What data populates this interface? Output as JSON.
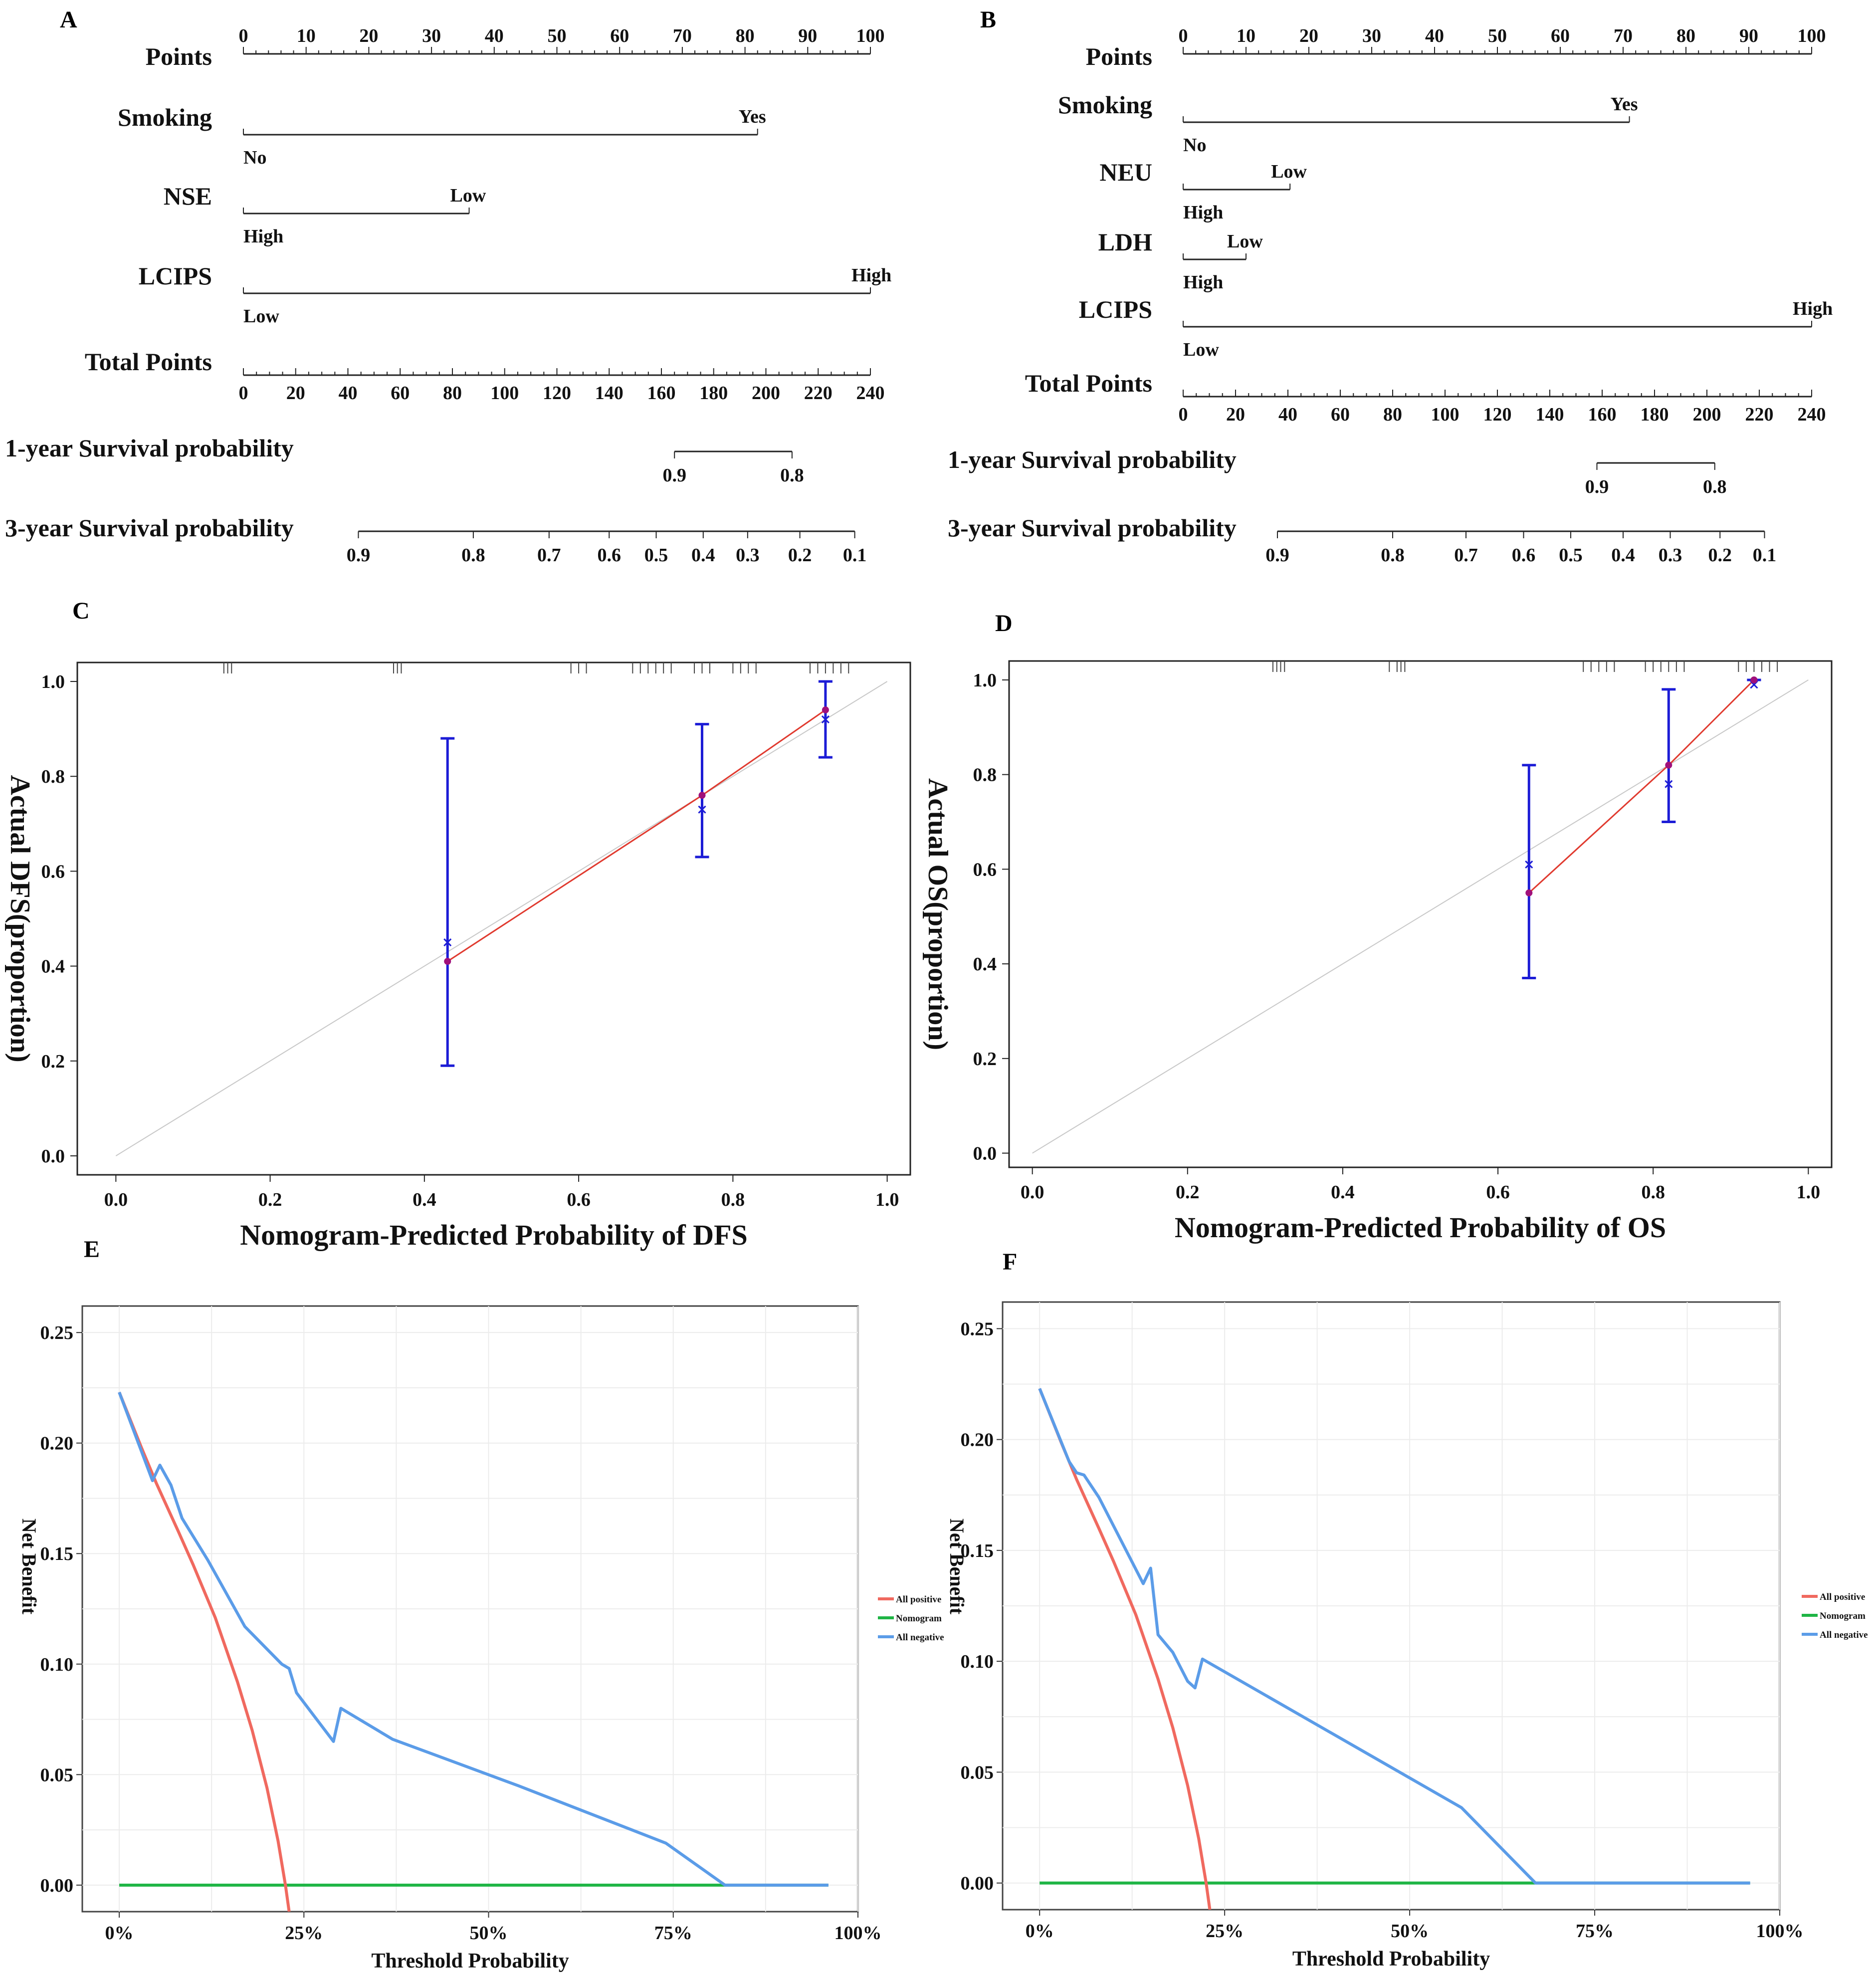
{
  "chart_data": [
    {
      "panel": "A",
      "type": "nomogram",
      "points_label": "Points",
      "points_ticks": [
        "0",
        "10",
        "20",
        "30",
        "40",
        "50",
        "60",
        "70",
        "80",
        "90",
        "100"
      ],
      "variables": [
        {
          "name": "Smoking",
          "low_label": "No",
          "high_label": "Yes",
          "max_points": 82
        },
        {
          "name": "NSE",
          "low_label": "High",
          "high_label": "Low",
          "max_points": 36
        },
        {
          "name": "LCIPS",
          "low_label": "Low",
          "high_label": "High",
          "max_points": 100
        }
      ],
      "total_label": "Total Points",
      "total_ticks": [
        "0",
        "20",
        "40",
        "60",
        "80",
        "100",
        "120",
        "140",
        "160",
        "180",
        "200",
        "220",
        "240"
      ],
      "total_max": 240,
      "survival": [
        {
          "label": "1-year Survival probability",
          "ticks": [
            {
              "t": "0.9",
              "pts": 165
            },
            {
              "t": "0.8",
              "pts": 210
            }
          ]
        },
        {
          "label": "3-year Survival probability",
          "ticks": [
            {
              "t": "0.9",
              "pts": 44
            },
            {
              "t": "0.8",
              "pts": 88
            },
            {
              "t": "0.7",
              "pts": 117
            },
            {
              "t": "0.6",
              "pts": 140
            },
            {
              "t": "0.5",
              "pts": 158
            },
            {
              "t": "0.4",
              "pts": 176
            },
            {
              "t": "0.3",
              "pts": 193
            },
            {
              "t": "0.2",
              "pts": 213
            },
            {
              "t": "0.1",
              "pts": 234
            }
          ]
        }
      ]
    },
    {
      "panel": "B",
      "type": "nomogram",
      "points_label": "Points",
      "points_ticks": [
        "0",
        "10",
        "20",
        "30",
        "40",
        "50",
        "60",
        "70",
        "80",
        "90",
        "100"
      ],
      "variables": [
        {
          "name": "Smoking",
          "low_label": "No",
          "high_label": "Yes",
          "max_points": 71
        },
        {
          "name": "NEU",
          "low_label": "High",
          "high_label": "Low",
          "max_points": 17
        },
        {
          "name": "LDH",
          "low_label": "High",
          "high_label": "Low",
          "max_points": 10
        },
        {
          "name": "LCIPS",
          "low_label": "Low",
          "high_label": "High",
          "max_points": 100
        }
      ],
      "total_label": "Total Points",
      "total_ticks": [
        "0",
        "20",
        "40",
        "60",
        "80",
        "100",
        "120",
        "140",
        "160",
        "180",
        "200",
        "220",
        "240"
      ],
      "total_max": 240,
      "survival": [
        {
          "label": "1-year Survival probability",
          "ticks": [
            {
              "t": "0.9",
              "pts": 158
            },
            {
              "t": "0.8",
              "pts": 203
            }
          ]
        },
        {
          "label": "3-year Survival probability",
          "ticks": [
            {
              "t": "0.9",
              "pts": 36
            },
            {
              "t": "0.8",
              "pts": 80
            },
            {
              "t": "0.7",
              "pts": 108
            },
            {
              "t": "0.6",
              "pts": 130
            },
            {
              "t": "0.5",
              "pts": 148
            },
            {
              "t": "0.4",
              "pts": 168
            },
            {
              "t": "0.3",
              "pts": 186
            },
            {
              "t": "0.2",
              "pts": 205
            },
            {
              "t": "0.1",
              "pts": 222
            }
          ]
        }
      ]
    },
    {
      "panel": "C",
      "type": "calibration",
      "xlabel": "Nomogram-Predicted Probability of DFS",
      "ylabel": "Actual DFS(proportion)",
      "xlim": [
        -0.05,
        1.03
      ],
      "ylim": [
        -0.04,
        1.04
      ],
      "xticks": [
        "0.0",
        "0.2",
        "0.4",
        "0.6",
        "0.8",
        "1.0"
      ],
      "yticks": [
        "0.0",
        "0.2",
        "0.4",
        "0.6",
        "0.8",
        "1.0"
      ],
      "points": [
        {
          "x": 0.43,
          "observed": 0.41,
          "corrected": 0.45,
          "lower": 0.19,
          "upper": 0.88
        },
        {
          "x": 0.76,
          "observed": 0.76,
          "corrected": 0.73,
          "lower": 0.63,
          "upper": 0.91
        },
        {
          "x": 0.92,
          "observed": 0.94,
          "corrected": 0.92,
          "lower": 0.84,
          "upper": 1.0
        }
      ],
      "rug": [
        0.14,
        0.145,
        0.15,
        0.36,
        0.365,
        0.37,
        0.59,
        0.6,
        0.61,
        0.67,
        0.68,
        0.69,
        0.7,
        0.71,
        0.72,
        0.75,
        0.76,
        0.77,
        0.8,
        0.81,
        0.82,
        0.83,
        0.9,
        0.91,
        0.92,
        0.93,
        0.94,
        0.95
      ]
    },
    {
      "panel": "D",
      "type": "calibration",
      "xlabel": "Nomogram-Predicted Probability of OS",
      "ylabel": "Actual OS(proportion)",
      "xlim": [
        -0.03,
        1.03
      ],
      "ylim": [
        -0.03,
        1.04
      ],
      "xticks": [
        "0.0",
        "0.2",
        "0.4",
        "0.6",
        "0.8",
        "1.0"
      ],
      "yticks": [
        "0.0",
        "0.2",
        "0.4",
        "0.6",
        "0.8",
        "1.0"
      ],
      "points": [
        {
          "x": 0.64,
          "observed": 0.55,
          "corrected": 0.61,
          "lower": 0.37,
          "upper": 0.82
        },
        {
          "x": 0.82,
          "observed": 0.82,
          "corrected": 0.78,
          "lower": 0.7,
          "upper": 0.98
        },
        {
          "x": 0.93,
          "observed": 1.0,
          "corrected": 0.99,
          "lower": 1.0,
          "upper": 1.0
        }
      ],
      "rug": [
        0.31,
        0.315,
        0.32,
        0.325,
        0.46,
        0.47,
        0.475,
        0.48,
        0.71,
        0.72,
        0.73,
        0.74,
        0.75,
        0.79,
        0.8,
        0.81,
        0.82,
        0.83,
        0.84,
        0.91,
        0.92,
        0.93,
        0.94,
        0.95,
        0.96
      ]
    },
    {
      "panel": "E",
      "type": "line",
      "subtype": "decision-curve",
      "xlabel": "Threshold Probability",
      "ylabel": "Net Benefit",
      "xlim": [
        -0.05,
        1.0
      ],
      "ylim": [
        -0.012,
        0.262
      ],
      "xticks": [
        "0%",
        "25%",
        "50%",
        "75%",
        "100%"
      ],
      "yticks": [
        "0.00",
        "0.05",
        "0.10",
        "0.15",
        "0.20",
        "0.25"
      ],
      "series": [
        {
          "name": "All positive",
          "color": "#f0695f",
          "points": [
            [
              0,
              0.223
            ],
            [
              0.03,
              0.198
            ],
            [
              0.05,
              0.182
            ],
            [
              0.08,
              0.16
            ],
            [
              0.1,
              0.145
            ],
            [
              0.13,
              0.121
            ],
            [
              0.16,
              0.092
            ],
            [
              0.18,
              0.07
            ],
            [
              0.2,
              0.044
            ],
            [
              0.215,
              0.02
            ],
            [
              0.225,
              0.0
            ],
            [
              0.23,
              -0.012
            ]
          ]
        },
        {
          "name": "Nomogram",
          "color": "#1fb545",
          "points": [
            [
              0,
              0.0
            ],
            [
              0.96,
              0.0
            ]
          ]
        },
        {
          "name": "All negative",
          "color": "#5b9ce8",
          "points": [
            [
              0,
              0.223
            ],
            [
              0.045,
              0.183
            ],
            [
              0.055,
              0.19
            ],
            [
              0.07,
              0.181
            ],
            [
              0.075,
              0.176
            ],
            [
              0.085,
              0.166
            ],
            [
              0.12,
              0.147
            ],
            [
              0.17,
              0.117
            ],
            [
              0.22,
              0.1
            ],
            [
              0.23,
              0.098
            ],
            [
              0.24,
              0.087
            ],
            [
              0.29,
              0.065
            ],
            [
              0.3,
              0.08
            ],
            [
              0.36,
              0.068
            ],
            [
              0.37,
              0.066
            ],
            [
              0.54,
              0.045
            ],
            [
              0.74,
              0.019
            ],
            [
              0.82,
              0.0
            ],
            [
              0.96,
              0.0
            ]
          ]
        }
      ]
    },
    {
      "panel": "F",
      "type": "line",
      "subtype": "decision-curve",
      "xlabel": "Threshold Probability",
      "ylabel": "Net Benefit",
      "xlim": [
        -0.05,
        1.0
      ],
      "ylim": [
        -0.012,
        0.262
      ],
      "xticks": [
        "0%",
        "25%",
        "50%",
        "75%",
        "100%"
      ],
      "yticks": [
        "0.00",
        "0.05",
        "0.10",
        "0.15",
        "0.20",
        "0.25"
      ],
      "series": [
        {
          "name": "All positive",
          "color": "#f0695f",
          "points": [
            [
              0,
              0.223
            ],
            [
              0.03,
              0.198
            ],
            [
              0.05,
              0.182
            ],
            [
              0.08,
              0.16
            ],
            [
              0.1,
              0.145
            ],
            [
              0.13,
              0.121
            ],
            [
              0.16,
              0.092
            ],
            [
              0.18,
              0.07
            ],
            [
              0.2,
              0.044
            ],
            [
              0.215,
              0.02
            ],
            [
              0.225,
              0.0
            ],
            [
              0.23,
              -0.012
            ]
          ]
        },
        {
          "name": "Nomogram",
          "color": "#1fb545",
          "points": [
            [
              0,
              0.0
            ],
            [
              0.96,
              0.0
            ]
          ]
        },
        {
          "name": "All negative",
          "color": "#5b9ce8",
          "points": [
            [
              0,
              0.223
            ],
            [
              0.04,
              0.19
            ],
            [
              0.05,
              0.185
            ],
            [
              0.06,
              0.184
            ],
            [
              0.08,
              0.174
            ],
            [
              0.14,
              0.135
            ],
            [
              0.15,
              0.142
            ],
            [
              0.16,
              0.112
            ],
            [
              0.18,
              0.104
            ],
            [
              0.2,
              0.091
            ],
            [
              0.21,
              0.088
            ],
            [
              0.22,
              0.101
            ],
            [
              0.57,
              0.034
            ],
            [
              0.67,
              0.0
            ],
            [
              0.96,
              0.0
            ]
          ]
        }
      ]
    }
  ]
}
